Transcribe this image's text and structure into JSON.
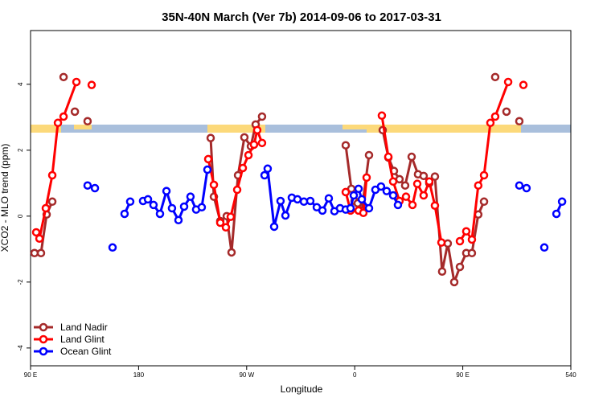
{
  "chart_data": {
    "type": "line",
    "title": "35N-40N March (Ver 7b)   2014-09-06 to 2017-03-31",
    "xlabel": "Longitude",
    "ylabel": "XCO2 - MLO trend (ppm)",
    "xlim": [
      90,
      540
    ],
    "ylim": [
      -4.54,
      5.63
    ],
    "xticks": [
      {
        "value": 90,
        "label": "90 E"
      },
      180,
      {
        "value": 270,
        "label": "90 W"
      },
      {
        "value": 360,
        "label": "0"
      },
      {
        "value": 450,
        "label": "90 E"
      },
      540
    ],
    "yticks": [
      -4,
      -2,
      0,
      2,
      4
    ],
    "legend": "bottom-left",
    "series": [
      {
        "name": "Land Nadir",
        "color": "#a52a2a",
        "x": [
          93.3,
          98.7,
          103.4,
          108.1,
          null,
          117.5,
          null,
          126.9,
          null,
          137.5,
          null,
          240.0,
          242.7,
          248.0,
          253.4,
          257.4,
          262.8,
          268.1,
          273.5,
          277.5,
          282.8,
          null,
          352.5,
          357.2,
          359.9,
          362.5,
          365.9,
          371.9,
          null,
          383.3,
          388.0,
          392.7,
          397.3,
          402.0,
          407.4,
          412.7,
          417.4,
          422.1,
          426.8,
          432.8,
          437.5,
          442.9,
          447.6,
          452.9,
          457.6,
          462.9,
          467.7,
          null,
          477.0,
          null,
          486.4,
          null,
          497.1
        ],
        "values": [
          -1.12,
          -1.12,
          0.05,
          0.44,
          null,
          4.22,
          null,
          3.17,
          null,
          2.88,
          null,
          2.37,
          0.59,
          -0.15,
          0,
          -1.1,
          1.24,
          2.39,
          2.12,
          2.78,
          3.02,
          null,
          2.15,
          0.83,
          0.46,
          0.39,
          0.17,
          1.85,
          null,
          2.61,
          1.78,
          1.37,
          1.12,
          0.93,
          1.8,
          1.27,
          1.22,
          1.0,
          1.2,
          -1.68,
          -0.83,
          -2.0,
          -1.54,
          -1.12,
          -1.12,
          0.05,
          0.44,
          null,
          4.22,
          null,
          3.17,
          null,
          2.88
        ]
      },
      {
        "name": "Land Glint",
        "color": "#ff0000",
        "x": [
          94.7,
          97.4,
          102.7,
          108.1,
          112.8,
          117.5,
          128.2,
          null,
          140.9,
          null,
          238.0,
          242.7,
          248.0,
          252.7,
          256.7,
          262.1,
          266.8,
          271.5,
          276.1,
          278.8,
          282.8,
          null,
          352.5,
          356.5,
          363.2,
          367.2,
          369.9,
          null,
          382.6,
          388.0,
          392.0,
          397.3,
          402.7,
          408.1,
          412.1,
          417.4,
          422.1,
          426.8,
          432.2,
          null,
          447.6,
          452.9,
          457.6,
          462.9,
          467.7,
          473.0,
          477.0,
          487.8,
          null,
          500.5
        ],
        "values": [
          -0.49,
          -0.68,
          0.24,
          1.24,
          2.83,
          3.02,
          4.07,
          null,
          3.98,
          null,
          1.73,
          0.95,
          -0.2,
          -0.34,
          -0.02,
          0.8,
          1.46,
          1.85,
          2.17,
          2.61,
          2.22,
          null,
          0.73,
          0.17,
          0.17,
          0.1,
          1.17,
          null,
          3.05,
          1.8,
          1.05,
          0.46,
          0.59,
          0.34,
          0.98,
          0.63,
          1.05,
          0.32,
          -0.8,
          null,
          -0.76,
          -0.46,
          -0.71,
          0.93,
          1.24,
          2.83,
          3.02,
          4.07,
          null,
          3.98
        ]
      },
      {
        "name": "Ocean Glint",
        "color": "#0000ff",
        "x": [
          137.5,
          null,
          143.6,
          null,
          158.3,
          null,
          168.3,
          173.0,
          null,
          183.7,
          187.8,
          192.4,
          197.8,
          203.2,
          207.8,
          213.2,
          217.9,
          223.2,
          227.9,
          232.6,
          237.3,
          null,
          284.9,
          287.5,
          292.9,
          298.2,
          302.3,
          307.6,
          312.3,
          317.7,
          323.0,
          328.4,
          333.1,
          338.4,
          343.1,
          347.8,
          352.5,
          356.5,
          359.2,
          363.2,
          365.9,
          371.9,
          377.2,
          381.9,
          386.6,
          392.0,
          396.0,
          null,
          497.1,
          503.1,
          null,
          517.9,
          null,
          528.0,
          532.7
        ],
        "values": [
          0.93,
          null,
          0.85,
          null,
          -0.95,
          null,
          0.07,
          0.44,
          null,
          0.46,
          0.51,
          0.34,
          0.07,
          0.76,
          0.24,
          -0.12,
          0.29,
          0.59,
          0.2,
          0.27,
          1.41,
          null,
          1.24,
          1.44,
          -0.32,
          0.46,
          0.02,
          0.56,
          0.51,
          0.44,
          0.46,
          0.27,
          0.17,
          0.54,
          0.15,
          0.24,
          0.2,
          0.24,
          0.63,
          0.83,
          0.51,
          0.24,
          0.8,
          0.9,
          0.76,
          0.63,
          0.34,
          null,
          0.93,
          0.85,
          null,
          -0.95,
          null,
          0.07,
          0.44
        ]
      }
    ]
  }
}
